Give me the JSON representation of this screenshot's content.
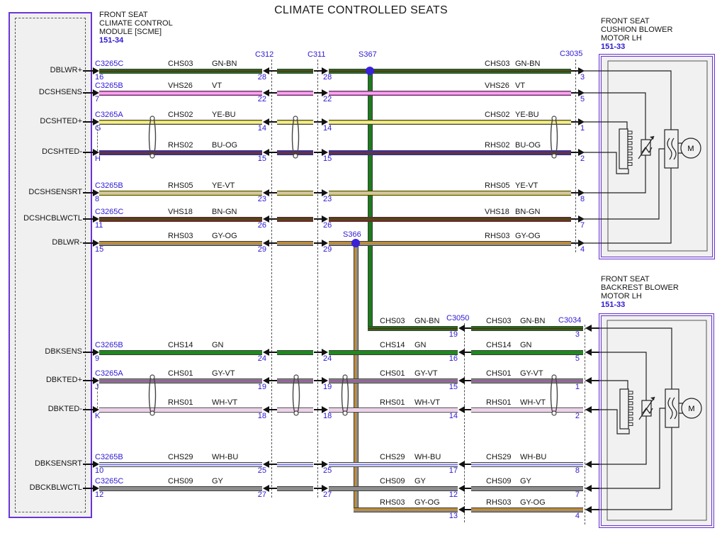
{
  "title": "CLIMATE CONTROLLED SEATS",
  "colors": {
    "accent_blue": "#2d18d2",
    "box_purple": "#6a35d8",
    "splice_dot": "#3a22d8",
    "box_fill": "#f0f0f0"
  },
  "module": {
    "title_lines": [
      "FRONT SEAT",
      "CLIMATE CONTROL",
      "MODULE [SCME]"
    ],
    "page_ref": "151-34"
  },
  "cushion_motor": {
    "title_lines": [
      "FRONT SEAT",
      "CUSHION BLOWER",
      "MOTOR LH"
    ],
    "page_ref": "151-33",
    "motor_label": "M"
  },
  "backrest_motor": {
    "title_lines": [
      "FRONT SEAT",
      "BACKREST BLOWER",
      "MOTOR LH"
    ],
    "page_ref": "151-33",
    "motor_label": "M"
  },
  "inline_connectors": {
    "c312": "C312",
    "c311": "C311",
    "c3035": "C3035",
    "c3050": "C3050",
    "c3034": "C3034"
  },
  "splices": {
    "s367": "S367",
    "s366": "S366"
  },
  "wire_colors": {
    "GN-BN": [
      "#1d7a1d",
      "#553311",
      "#1d7a1d"
    ],
    "VT": [
      "#f168e2",
      "#fcb9f1",
      "#f168e2"
    ],
    "YE-BU": [
      "#ddd020",
      "#eef2f8",
      "#ddd020"
    ],
    "BU-OG": [
      "#4623cc",
      "#6b3c0e",
      "#4623cc"
    ],
    "YE-VT": [
      "#ddd020",
      "#cdbfe2",
      "#ddd020"
    ],
    "BN-GN": [
      "#8e1e14",
      "#2f5c1e",
      "#8e1e14"
    ],
    "GY-OG": [
      "#bd8c3a",
      "#bd8c3a",
      "#8d8d8d"
    ],
    "GN": [
      "#1e8a1e",
      "#1e8a1e",
      "#1e8a1e"
    ],
    "GY-VT": [
      "#8d8d8d",
      "#96519e",
      "#8d8d8d"
    ],
    "WH-VT": [
      "#f8f8f8",
      "#f3b2ea",
      "#f8f8f8"
    ],
    "WH-BU": [
      "#f5f5f5",
      "#8080e8",
      "#f5f5f5"
    ],
    "GY": [
      "#8d8d8d",
      "#8d8d8d",
      "#8d8d8d"
    ]
  },
  "top_rows": [
    {
      "signal": "DBLWR+",
      "module_conn": "C3265C",
      "module_pin": "16",
      "circuit": "CHS03",
      "color": "GN-BN",
      "c312_pin": "28",
      "c311_pin": "28",
      "c3035_pin": "3"
    },
    {
      "signal": "DCSHSENS",
      "module_conn": "C3265B",
      "module_pin": "7",
      "circuit": "VHS26",
      "color": "VT",
      "c312_pin": "22",
      "c311_pin": "22",
      "c3035_pin": "5"
    },
    {
      "signal": "DCSHTED+",
      "module_conn": "C3265A",
      "module_pin": "G",
      "circuit": "CHS02",
      "color": "YE-BU",
      "c312_pin": "14",
      "c311_pin": "14",
      "c3035_pin": "1"
    },
    {
      "signal": "DCSHTED-",
      "module_conn": "",
      "module_pin": "H",
      "circuit": "RHS02",
      "color": "BU-OG",
      "c312_pin": "15",
      "c311_pin": "15",
      "c3035_pin": "2"
    },
    {
      "signal": "DCSHSENSRT",
      "module_conn": "C3265B",
      "module_pin": "8",
      "circuit": "RHS05",
      "color": "YE-VT",
      "c312_pin": "23",
      "c311_pin": "23",
      "c3035_pin": "8"
    },
    {
      "signal": "DCSHCBLWCTL",
      "module_conn": "C3265C",
      "module_pin": "11",
      "circuit": "VHS18",
      "color": "BN-GN",
      "c312_pin": "26",
      "c311_pin": "26",
      "c3035_pin": "7"
    },
    {
      "signal": "DBLWR-",
      "module_conn": "",
      "module_pin": "15",
      "circuit": "RHS03",
      "color": "GY-OG",
      "c312_pin": "29",
      "c311_pin": "29",
      "c3035_pin": "4"
    }
  ],
  "bottom_rows": [
    {
      "signal": "DBKSENS",
      "module_conn": "C3265B",
      "module_pin": "9",
      "circuit": "CHS14",
      "color": "GN",
      "c312_pin": "24",
      "c311_pin": "24",
      "c3050_pin": "16",
      "c3034_pin": "5"
    },
    {
      "signal": "DBKTED+",
      "module_conn": "C3265A",
      "module_pin": "J",
      "circuit": "CHS01",
      "color": "GY-VT",
      "c312_pin": "19",
      "c311_pin": "19",
      "c3050_pin": "15",
      "c3034_pin": "1"
    },
    {
      "signal": "DBKTED-",
      "module_conn": "",
      "module_pin": "K",
      "circuit": "RHS01",
      "color": "WH-VT",
      "c312_pin": "18",
      "c311_pin": "18",
      "c3050_pin": "14",
      "c3034_pin": "2"
    },
    {
      "signal": "DBKSENSRT",
      "module_conn": "C3265B",
      "module_pin": "10",
      "circuit": "CHS29",
      "color": "WH-BU",
      "c312_pin": "25",
      "c311_pin": "25",
      "c3050_pin": "17",
      "c3034_pin": "8"
    },
    {
      "signal": "DBCKBLWCTL",
      "module_conn": "C3265C",
      "module_pin": "12",
      "circuit": "CHS09",
      "color": "GY",
      "c312_pin": "27",
      "c311_pin": "27",
      "c3050_pin": "12",
      "c3034_pin": "7"
    }
  ],
  "branch_rows": [
    {
      "circuit": "CHS03",
      "color": "GN-BN",
      "from_splice": "S367",
      "c3050_pin": "19",
      "c3034_pin": "3"
    },
    {
      "circuit": "RHS03",
      "color": "GY-OG",
      "from_splice": "S366",
      "c3050_pin": "13",
      "c3034_pin": "4"
    }
  ]
}
